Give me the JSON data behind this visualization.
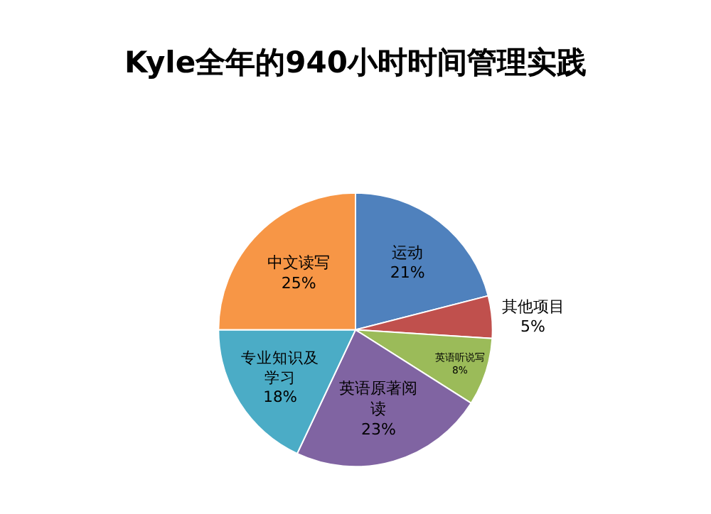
{
  "chart_data": {
    "type": "pie",
    "title": "Kyle全年的940小时时间管理实践",
    "categories": [
      "运动",
      "其他项目",
      "英语听说写",
      "英语原著阅读",
      "专业知识及学习",
      "中文读写"
    ],
    "values": [
      21,
      5,
      8,
      23,
      18,
      25
    ],
    "value_labels": [
      "21%",
      "5%",
      "8%",
      "23%",
      "18%",
      "25%"
    ],
    "colors": [
      "#4f81bd",
      "#c0504d",
      "#9bbb59",
      "#8064a2",
      "#4bacc6",
      "#f79646"
    ],
    "legend": false
  }
}
